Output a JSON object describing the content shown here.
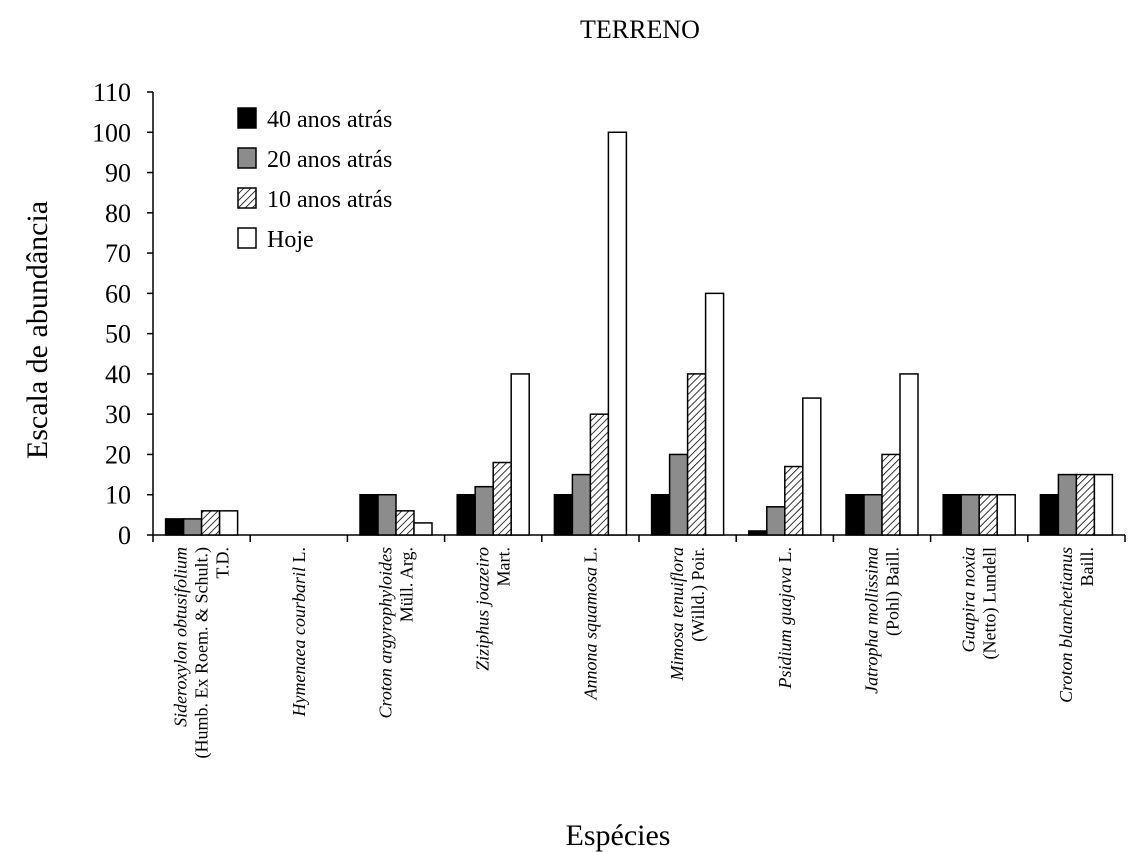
{
  "chart_data": {
    "type": "bar",
    "title": "TERRENO",
    "xlabel": "Espécies",
    "ylabel": "Escala de abundância",
    "ylim": [
      0,
      110
    ],
    "yticks": [
      0,
      10,
      20,
      30,
      40,
      50,
      60,
      70,
      80,
      90,
      100,
      110
    ],
    "legend_position": "top-left",
    "grid": false,
    "categories": [
      {
        "lines": [
          [
            {
              "t": "Sideroxylon obtusifolium",
              "i": true
            }
          ],
          [
            {
              "t": "(Humb. Ex Roem. & Schult.)",
              "i": false
            }
          ],
          [
            {
              "t": "T.D.",
              "i": false
            }
          ]
        ]
      },
      {
        "lines": [
          [
            {
              "t": "Hymenaea courbaril",
              "i": true
            },
            {
              "t": " L.",
              "i": false
            }
          ]
        ]
      },
      {
        "lines": [
          [
            {
              "t": "Croton argyrophyloides",
              "i": true
            }
          ],
          [
            {
              "t": "Müll. Arg.",
              "i": false
            }
          ]
        ]
      },
      {
        "lines": [
          [
            {
              "t": "Ziziphus joazeiro",
              "i": true
            }
          ],
          [
            {
              "t": "Mart.",
              "i": false
            }
          ]
        ]
      },
      {
        "lines": [
          [
            {
              "t": "Annona squamosa",
              "i": true
            },
            {
              "t": " L.",
              "i": false
            }
          ]
        ]
      },
      {
        "lines": [
          [
            {
              "t": "Mimosa tenuiflora",
              "i": true
            }
          ],
          [
            {
              "t": "(Willd.) Poir.",
              "i": false
            }
          ]
        ]
      },
      {
        "lines": [
          [
            {
              "t": "Psidium guajava",
              "i": true
            },
            {
              "t": " L.",
              "i": false
            }
          ]
        ]
      },
      {
        "lines": [
          [
            {
              "t": "Jatropha mollissima",
              "i": true
            }
          ],
          [
            {
              "t": "(Pohl) Baill.",
              "i": false
            }
          ]
        ]
      },
      {
        "lines": [
          [
            {
              "t": "Guapira noxia",
              "i": true
            }
          ],
          [
            {
              "t": "(Netto) Lundell",
              "i": false
            }
          ]
        ]
      },
      {
        "lines": [
          [
            {
              "t": "Croton blanchetianus",
              "i": true
            }
          ],
          [
            {
              "t": "Baill.",
              "i": false
            }
          ]
        ]
      }
    ],
    "series": [
      {
        "name": "40 anos atrás",
        "fill": "black",
        "values": [
          4,
          0,
          10,
          10,
          10,
          10,
          1,
          10,
          10,
          10
        ]
      },
      {
        "name": "20 anos atrás",
        "fill": "gray",
        "values": [
          4,
          0,
          10,
          12,
          15,
          20,
          7,
          10,
          10,
          15
        ]
      },
      {
        "name": "10 anos atrás",
        "fill": "hatch",
        "values": [
          6,
          0,
          6,
          18,
          30,
          40,
          17,
          20,
          10,
          15
        ]
      },
      {
        "name": "Hoje",
        "fill": "white",
        "values": [
          6,
          0,
          3,
          40,
          100,
          60,
          34,
          40,
          10,
          15
        ]
      }
    ],
    "colors": {
      "black": "#000000",
      "gray": "#8c8c8c",
      "white": "#ffffff",
      "stroke": "#000000"
    }
  }
}
